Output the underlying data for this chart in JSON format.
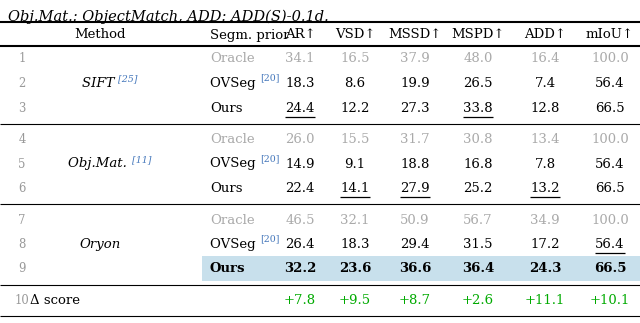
{
  "title": "Obj.Mat.: ObjectMatch, ADD: ADD(S)-0.1d.",
  "col_headers": [
    "",
    "Method",
    "Segm. prior",
    "AR↑",
    "VSD↑",
    "MSSD↑",
    "MSPD↑",
    "ADD↑",
    "mIoU↑"
  ],
  "rows": [
    {
      "num": "1",
      "segm": "Oracle",
      "ar": "34.1",
      "vsd": "16.5",
      "mssd": "37.9",
      "mspd": "48.0",
      "add": "16.4",
      "miou": "100.0",
      "oracle": true,
      "highlight": false,
      "delta": false,
      "ul": [
        false,
        false,
        false,
        false,
        false,
        false
      ],
      "bold": [
        false,
        false,
        false,
        false,
        false,
        false
      ]
    },
    {
      "num": "2",
      "segm": "OVSeg",
      "ar": "18.3",
      "vsd": "8.6",
      "mssd": "19.9",
      "mspd": "26.5",
      "add": "7.4",
      "miou": "56.4",
      "oracle": false,
      "highlight": false,
      "delta": false,
      "ul": [
        false,
        false,
        false,
        false,
        false,
        false
      ],
      "bold": [
        false,
        false,
        false,
        false,
        false,
        false
      ]
    },
    {
      "num": "3",
      "segm": "Ours",
      "ar": "24.4",
      "vsd": "12.2",
      "mssd": "27.3",
      "mspd": "33.8",
      "add": "12.8",
      "miou": "66.5",
      "oracle": false,
      "highlight": false,
      "delta": false,
      "ul": [
        true,
        false,
        false,
        true,
        false,
        false
      ],
      "bold": [
        false,
        false,
        false,
        false,
        false,
        false
      ]
    },
    {
      "num": "4",
      "segm": "Oracle",
      "ar": "26.0",
      "vsd": "15.5",
      "mssd": "31.7",
      "mspd": "30.8",
      "add": "13.4",
      "miou": "100.0",
      "oracle": true,
      "highlight": false,
      "delta": false,
      "ul": [
        false,
        false,
        false,
        false,
        false,
        false
      ],
      "bold": [
        false,
        false,
        false,
        false,
        false,
        false
      ]
    },
    {
      "num": "5",
      "segm": "OVSeg",
      "ar": "14.9",
      "vsd": "9.1",
      "mssd": "18.8",
      "mspd": "16.8",
      "add": "7.8",
      "miou": "56.4",
      "oracle": false,
      "highlight": false,
      "delta": false,
      "ul": [
        false,
        false,
        false,
        false,
        false,
        false
      ],
      "bold": [
        false,
        false,
        false,
        false,
        false,
        false
      ]
    },
    {
      "num": "6",
      "segm": "Ours",
      "ar": "22.4",
      "vsd": "14.1",
      "mssd": "27.9",
      "mspd": "25.2",
      "add": "13.2",
      "miou": "66.5",
      "oracle": false,
      "highlight": false,
      "delta": false,
      "ul": [
        false,
        true,
        true,
        false,
        true,
        false
      ],
      "bold": [
        false,
        false,
        false,
        false,
        false,
        false
      ]
    },
    {
      "num": "7",
      "segm": "Oracle",
      "ar": "46.5",
      "vsd": "32.1",
      "mssd": "50.9",
      "mspd": "56.7",
      "add": "34.9",
      "miou": "100.0",
      "oracle": true,
      "highlight": false,
      "delta": false,
      "ul": [
        false,
        false,
        false,
        false,
        false,
        false
      ],
      "bold": [
        false,
        false,
        false,
        false,
        false,
        false
      ]
    },
    {
      "num": "8",
      "segm": "OVSeg",
      "ar": "26.4",
      "vsd": "18.3",
      "mssd": "29.4",
      "mspd": "31.5",
      "add": "17.2",
      "miou": "56.4",
      "oracle": false,
      "highlight": false,
      "delta": false,
      "ul": [
        false,
        false,
        false,
        false,
        false,
        true
      ],
      "bold": [
        false,
        false,
        false,
        false,
        false,
        false
      ]
    },
    {
      "num": "9",
      "segm": "Ours",
      "ar": "32.2",
      "vsd": "23.6",
      "mssd": "36.6",
      "mspd": "36.4",
      "add": "24.3",
      "miou": "66.5",
      "oracle": false,
      "highlight": true,
      "delta": false,
      "ul": [
        false,
        false,
        false,
        false,
        false,
        false
      ],
      "bold": [
        true,
        true,
        true,
        true,
        true,
        true
      ]
    },
    {
      "num": "10",
      "segm": "",
      "ar": "+7.8",
      "vsd": "+9.5",
      "mssd": "+8.7",
      "mspd": "+2.6",
      "add": "+11.1",
      "miou": "+10.1",
      "oracle": false,
      "highlight": false,
      "delta": true,
      "ul": [
        false,
        false,
        false,
        false,
        false,
        false
      ],
      "bold": [
        false,
        false,
        false,
        false,
        false,
        false
      ]
    }
  ],
  "method_groups": [
    {
      "label": "SIFT",
      "superscript": "[25]",
      "row_indices": [
        0,
        1,
        2
      ]
    },
    {
      "label": "Obj.Mat.",
      "superscript": "[11]",
      "row_indices": [
        3,
        4,
        5
      ]
    },
    {
      "label": "Oryon",
      "superscript": null,
      "row_indices": [
        6,
        7,
        8
      ]
    }
  ],
  "oracle_color": "#aaaaaa",
  "delta_color": "#00aa00",
  "highlight_bg": "#c8e0ec",
  "ovseg_color": "#4477bb",
  "num_color": "#999999",
  "body_fs": 9.5,
  "header_fs": 9.5,
  "title_fs": 10.5
}
